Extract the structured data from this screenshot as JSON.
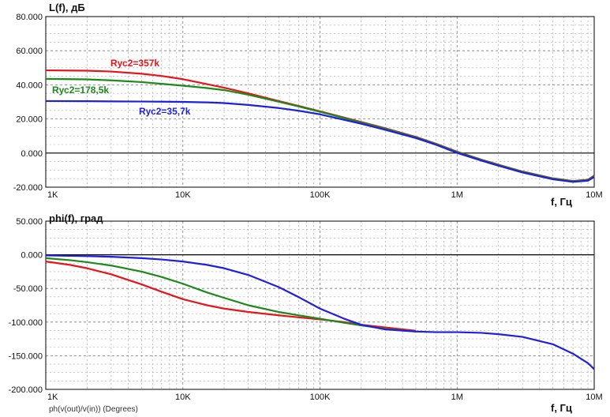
{
  "chart_data": [
    {
      "type": "line",
      "title": "L(f), дБ",
      "xlabel": "f, Гц",
      "ylabel": "",
      "xscale": "log",
      "xlim": [
        1000,
        10000000
      ],
      "ylim": [
        -20,
        80
      ],
      "yticks": [
        "80.000",
        "60.000",
        "40.000",
        "20.000",
        "0.000",
        "-20.000"
      ],
      "xticks": [
        "1K",
        "10K",
        "100K",
        "1M",
        "10M"
      ],
      "grid": true,
      "series": [
        {
          "name": "Rус2=357k",
          "color": "#e8141a",
          "x": [
            1000,
            2000,
            3000,
            5000,
            7000,
            10000,
            15000,
            20000,
            30000,
            50000,
            70000,
            100000,
            200000,
            300000,
            500000,
            700000,
            1000000,
            1500000,
            2000000,
            3000000,
            5000000,
            7000000,
            9000000,
            10000000
          ],
          "y": [
            48.5,
            48.3,
            47.8,
            46.5,
            45.2,
            43.3,
            40.4,
            38.3,
            35.0,
            30.5,
            27.6,
            24.5,
            18.2,
            14.5,
            9.5,
            5.5,
            0.8,
            -3.8,
            -6.8,
            -10.8,
            -14.8,
            -16.4,
            -15.6,
            -13.2
          ]
        },
        {
          "name": "Rус2=178,5k",
          "color": "#1a8a1a",
          "x": [
            1000,
            2000,
            3000,
            5000,
            7000,
            10000,
            15000,
            20000,
            30000,
            50000,
            70000,
            100000,
            200000,
            300000,
            500000,
            700000,
            1000000,
            1500000,
            2000000,
            3000000,
            5000000,
            7000000,
            9000000,
            10000000
          ],
          "y": [
            43.5,
            43.2,
            42.6,
            41.6,
            40.6,
            39.5,
            38.1,
            36.9,
            34.2,
            30.1,
            27.3,
            24.2,
            17.9,
            14.2,
            9.2,
            5.3,
            0.6,
            -4.0,
            -7.0,
            -11.0,
            -15.0,
            -16.5,
            -15.8,
            -13.6
          ]
        },
        {
          "name": "Rус2=35,7k",
          "color": "#1f1fe0",
          "x": [
            1000,
            2000,
            3000,
            5000,
            7000,
            10000,
            15000,
            20000,
            30000,
            50000,
            70000,
            100000,
            200000,
            300000,
            500000,
            700000,
            1000000,
            1500000,
            2000000,
            3000000,
            5000000,
            7000000,
            9000000,
            10000000
          ],
          "y": [
            30.5,
            30.4,
            30.3,
            30.2,
            30.1,
            30.0,
            29.7,
            29.3,
            28.2,
            26.4,
            24.8,
            22.7,
            17.2,
            13.6,
            8.8,
            4.9,
            0.1,
            -4.4,
            -7.4,
            -11.4,
            -15.4,
            -16.9,
            -16.2,
            -14.0
          ]
        }
      ]
    },
    {
      "type": "line",
      "title": "phi(f), град",
      "xlabel": "f, Гц",
      "ylabel": "ph(v(out)/v(in)) (Degrees)",
      "xscale": "log",
      "xlim": [
        1000,
        10000000
      ],
      "ylim": [
        -200,
        50
      ],
      "yticks": [
        "50.000",
        "0.000",
        "-50.000",
        "-100.000",
        "-150.000",
        "-200.000"
      ],
      "xticks": [
        "1K",
        "10K",
        "100K",
        "1M",
        "10M"
      ],
      "grid": true,
      "series": [
        {
          "color": "#e8141a",
          "x": [
            1000,
            1500,
            2000,
            3000,
            5000,
            7000,
            10000,
            15000,
            20000,
            30000,
            50000,
            70000,
            100000,
            150000,
            200000,
            300000,
            500000
          ],
          "y": [
            -10,
            -15,
            -20,
            -29,
            -44,
            -55,
            -66,
            -75,
            -80,
            -85,
            -90,
            -93,
            -96,
            -100,
            -104,
            -108,
            -113
          ]
        },
        {
          "color": "#1a8a1a",
          "x": [
            1000,
            1500,
            2000,
            3000,
            5000,
            7000,
            10000,
            15000,
            20000,
            30000,
            50000,
            70000,
            100000,
            150000,
            200000,
            300000,
            500000
          ],
          "y": [
            -5,
            -8,
            -11,
            -16,
            -25,
            -33,
            -43,
            -56,
            -64,
            -75,
            -85,
            -90,
            -95,
            -101,
            -105,
            -110,
            -114
          ]
        },
        {
          "color": "#1f1fe0",
          "x": [
            1000,
            2000,
            3000,
            5000,
            7000,
            10000,
            15000,
            20000,
            30000,
            50000,
            70000,
            100000,
            150000,
            200000,
            300000,
            500000,
            700000,
            1000000,
            1500000,
            2000000,
            3000000,
            5000000,
            7000000,
            9000000,
            10000000
          ],
          "y": [
            -1,
            -2,
            -3,
            -5,
            -7,
            -10,
            -15,
            -20,
            -30,
            -48,
            -63,
            -80,
            -95,
            -104,
            -111,
            -114,
            -115,
            -115,
            -116,
            -118,
            -122,
            -133,
            -147,
            -161,
            -170
          ]
        }
      ]
    }
  ],
  "labels": {
    "top_title": "L(f), дБ",
    "bottom_title": "phi(f), град",
    "top_xname": "f, Гц",
    "bottom_xname": "f, Гц",
    "bottom_foot": "ph(v(out)/v(in)) (Degrees)",
    "series_red": "Rус2=357k",
    "series_green": "Rус2=178,5k",
    "series_blue": "Rус2=35,7k"
  }
}
